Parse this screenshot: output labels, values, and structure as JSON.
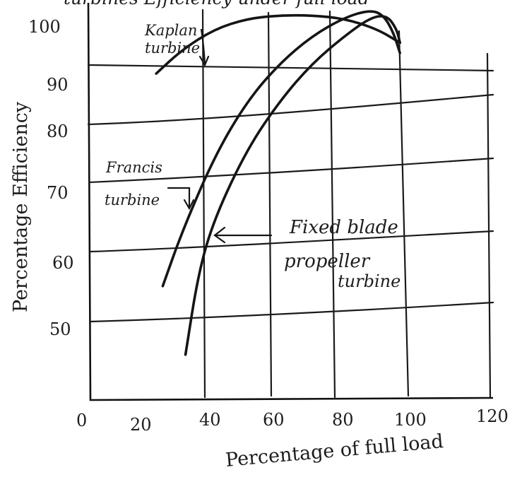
{
  "chart_data": {
    "type": "line",
    "title": "",
    "xlabel": "Percentage of full load",
    "ylabel": "Percentage Efficiency",
    "xlim": [
      0,
      120
    ],
    "ylim": [
      40,
      100
    ],
    "x_ticks": [
      "0",
      "20",
      "40",
      "60",
      "80",
      "100",
      "120"
    ],
    "y_ticks": [
      "50",
      "60",
      "70",
      "80",
      "90",
      "100"
    ],
    "grid": true,
    "legend": "none",
    "series": [
      {
        "name": "Kaplan turbine",
        "label_lines": [
          "Kaplan",
          "turbine"
        ],
        "points": [
          [
            22,
            87
          ],
          [
            30,
            90.5
          ],
          [
            40,
            93.5
          ],
          [
            50,
            95
          ],
          [
            60,
            95.5
          ],
          [
            70,
            95.5
          ],
          [
            80,
            95
          ],
          [
            90,
            93.5
          ],
          [
            97,
            91.5
          ]
        ]
      },
      {
        "name": "Francis turbine",
        "label_lines": [
          "Francis",
          "turbine"
        ],
        "points": [
          [
            24,
            56
          ],
          [
            30,
            64
          ],
          [
            40,
            75
          ],
          [
            50,
            83
          ],
          [
            60,
            88.5
          ],
          [
            70,
            92.5
          ],
          [
            80,
            95.2
          ],
          [
            88,
            96.3
          ],
          [
            92,
            95.5
          ],
          [
            95,
            93
          ],
          [
            97,
            90
          ]
        ]
      },
      {
        "name": "Fixed blade propeller turbine",
        "label_lines": [
          "Fixed blade",
          "propeller",
          "turbine"
        ],
        "points": [
          [
            31,
            46
          ],
          [
            35,
            58
          ],
          [
            40,
            66
          ],
          [
            50,
            76
          ],
          [
            60,
            83
          ],
          [
            70,
            88.5
          ],
          [
            80,
            92.5
          ],
          [
            88,
            95.2
          ],
          [
            93,
            95.5
          ],
          [
            96,
            93.5
          ],
          [
            97,
            91.5
          ]
        ]
      }
    ]
  },
  "header_fragment": "turbines Efficiency under full load",
  "decorations": {
    "pen": "#151515"
  }
}
